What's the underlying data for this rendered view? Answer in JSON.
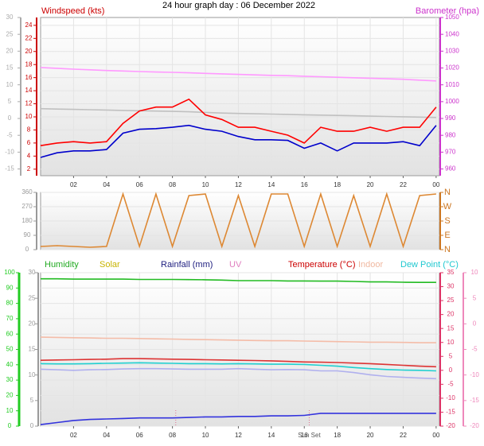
{
  "chart_data": [
    {
      "type": "line",
      "title": "24 hour graph day : 06 December 2022",
      "labels": [
        {
          "text": "Windspeed (kts)",
          "color": "#cc0000"
        },
        {
          "text": "Barometer (hpa)",
          "color": "#cc33cc"
        }
      ],
      "x": [
        0,
        1,
        2,
        3,
        4,
        5,
        6,
        7,
        8,
        9,
        10,
        11,
        12,
        13,
        14,
        15,
        16,
        17,
        18,
        19,
        20,
        21,
        22,
        23,
        24
      ],
      "xlim": [
        0,
        24.2
      ],
      "xticks": [
        {
          "value": 2,
          "label": "02"
        },
        {
          "value": 4,
          "label": "04"
        },
        {
          "value": 6,
          "label": "06"
        },
        {
          "value": 8,
          "label": "08"
        },
        10,
        12,
        14,
        16,
        18,
        20,
        22,
        {
          "value": 24,
          "label": "00"
        }
      ],
      "ylim": [
        1,
        25.2
      ],
      "yticks": [
        2,
        4,
        6,
        8,
        10,
        12,
        14,
        16,
        18,
        20,
        22,
        24
      ],
      "y2lim": [
        956,
        1050
      ],
      "y2ticks": [
        960,
        970,
        980,
        990,
        1000,
        1010,
        1020,
        1030,
        1040,
        1050
      ],
      "y3lim": [
        -17,
        30
      ],
      "y3ticks": [
        -15,
        -10,
        -5,
        0,
        5,
        10,
        15,
        20,
        25,
        30
      ],
      "axis_colors": {
        "y": "#cc0000",
        "y2": "#cc33cc",
        "y3": "#aaaaaa"
      },
      "grid": true,
      "series": [
        {
          "color": "#ff99ff",
          "axis": "y2",
          "values": [
            1020.3,
            1019.8,
            1019.3,
            1018.9,
            1018.5,
            1018.2,
            1017.9,
            1017.6,
            1017.4,
            1017.1,
            1016.8,
            1016.5,
            1016.2,
            1015.9,
            1015.6,
            1015.4,
            1015.1,
            1014.8,
            1014.5,
            1014.2,
            1013.9,
            1013.6,
            1013.3,
            1012.8,
            1012.3
          ]
        },
        {
          "color": "#c0c0c0",
          "axis": "y3",
          "values": [
            2.9,
            2.8,
            2.7,
            2.6,
            2.5,
            2.4,
            2.3,
            2.2,
            2.1,
            2.0,
            1.8,
            1.6,
            1.5,
            1.4,
            1.3,
            1.2,
            1.1,
            1.0,
            0.9,
            0.8,
            0.7,
            0.6,
            0.5,
            0.4,
            0.3
          ]
        },
        {
          "color": "#ff0000",
          "values": [
            5.6,
            6,
            6.2,
            6,
            6.2,
            9,
            10.9,
            11.5,
            11.5,
            12.7,
            10.3,
            9.6,
            8.4,
            8.4,
            7.8,
            7.2,
            6,
            8.4,
            7.8,
            7.8,
            8.4,
            7.8,
            8.4,
            8.4,
            11.5
          ]
        },
        {
          "color": "#0000cc",
          "values": [
            3.8,
            4.5,
            4.8,
            4.8,
            5,
            7.5,
            8.1,
            8.2,
            8.4,
            8.7,
            8.1,
            7.8,
            7,
            6.5,
            6.5,
            6.4,
            5.2,
            6,
            4.8,
            6,
            6,
            6,
            6.2,
            5.6,
            8.7
          ]
        }
      ]
    },
    {
      "type": "line",
      "x": [
        0,
        1,
        2,
        3,
        4,
        5,
        6,
        7,
        8,
        9,
        10,
        11,
        12,
        13,
        14,
        15,
        16,
        17,
        18,
        19,
        20,
        21,
        22,
        23,
        24
      ],
      "xlim": [
        0,
        24.2
      ],
      "ylim": [
        0,
        360
      ],
      "yticks": [
        0,
        90,
        180,
        270,
        360
      ],
      "y2lim": [
        0,
        360
      ],
      "y2ticks": [
        {
          "value": 0,
          "label": "N"
        },
        {
          "value": 90,
          "label": "E"
        },
        {
          "value": 180,
          "label": "S"
        },
        {
          "value": 270,
          "label": "W"
        },
        {
          "value": 360,
          "label": "N"
        }
      ],
      "axis_colors": {
        "y": "#999999",
        "y2": "#cc7722"
      },
      "grid": true,
      "series": [
        {
          "color": "#dd8833",
          "values": [
            20,
            25,
            20,
            15,
            20,
            350,
            20,
            350,
            20,
            340,
            350,
            20,
            340,
            20,
            350,
            350,
            20,
            350,
            20,
            340,
            20,
            350,
            20,
            340,
            350
          ]
        }
      ]
    },
    {
      "type": "line",
      "labels": [
        {
          "text": "Humidity",
          "color": "#22aa22"
        },
        {
          "text": "Solar",
          "color": "#c8b400"
        },
        {
          "text": "Rainfall (mm)",
          "color": "#202080"
        },
        {
          "text": "UV",
          "color": "#e080c0"
        },
        {
          "text": "Temperature (°C)",
          "color": "#cc0000"
        },
        {
          "text": "Indoor",
          "color": "#f0b8a0"
        },
        {
          "text": "Dew Point (°C)",
          "color": "#20c8d0"
        }
      ],
      "x": [
        0,
        1,
        2,
        3,
        4,
        5,
        6,
        7,
        8,
        9,
        10,
        11,
        12,
        13,
        14,
        15,
        16,
        17,
        18,
        19,
        20,
        21,
        22,
        23,
        24
      ],
      "xlim": [
        0,
        24.2
      ],
      "xticks": [
        {
          "value": 2,
          "label": "02"
        },
        {
          "value": 4,
          "label": "04"
        },
        {
          "value": 6,
          "label": "06"
        },
        {
          "value": 8,
          "label": "08"
        },
        10,
        12,
        14,
        16,
        18,
        20,
        22,
        {
          "value": 24,
          "label": "00"
        }
      ],
      "ylim": [
        0,
        100
      ],
      "yticks": [
        0,
        10,
        20,
        30,
        40,
        50,
        60,
        70,
        80,
        90,
        100
      ],
      "y2lim": [
        -20,
        35
      ],
      "y2ticks": [
        -20,
        -15,
        -10,
        -5,
        0,
        5,
        10,
        15,
        20,
        25,
        30,
        35
      ],
      "y3lim": [
        0,
        30
      ],
      "y3ticks": [
        0,
        5,
        10,
        15,
        20,
        25,
        30
      ],
      "y4lim": [
        -20,
        10
      ],
      "y4ticks": [
        -20,
        -15,
        -10,
        -5,
        0,
        5,
        10
      ],
      "axis_colors": {
        "y": "#22cc22",
        "y2": "#dd3366",
        "y3": "#999999",
        "y4": "#ee88bb"
      },
      "grid": true,
      "annotations": [
        {
          "x": 8.2
        },
        {
          "x": 16.3,
          "text": "Sun Set"
        }
      ],
      "series": [
        {
          "color": "#22bb22",
          "values": [
            96,
            96,
            95.8,
            95.8,
            95.8,
            95.8,
            95.6,
            95.6,
            95.6,
            95.5,
            95.4,
            95.2,
            94.8,
            94.8,
            94.8,
            94.6,
            94.6,
            94.5,
            94.5,
            94.3,
            94,
            94,
            93.8,
            93.7,
            93.7
          ]
        },
        {
          "color": "#f4bca8",
          "axis": "y2",
          "values": [
            11.9,
            11.8,
            11.7,
            11.6,
            11.5,
            11.5,
            11.4,
            11.3,
            11.2,
            11.1,
            11,
            10.9,
            10.8,
            10.7,
            10.6,
            10.6,
            10.5,
            10.4,
            10.3,
            10.2,
            10.1,
            10.1,
            10,
            9.9,
            9.9
          ]
        },
        {
          "color": "#b0b0ee",
          "axis": "y2",
          "values": [
            0.4,
            0.2,
            0,
            0.2,
            0.3,
            0.5,
            0.6,
            0.6,
            0.5,
            0.4,
            0.4,
            0.4,
            0.6,
            0.4,
            0.2,
            0.3,
            0.2,
            -0.2,
            -0.2,
            -0.8,
            -1.6,
            -2.2,
            -2.5,
            -2.8,
            -3
          ]
        },
        {
          "color": "#20d0d0",
          "axis": "y2",
          "values": [
            2.4,
            2.3,
            2.3,
            2.4,
            2.5,
            2.6,
            2.7,
            2.6,
            2.5,
            2.4,
            2.4,
            2.3,
            2.4,
            2.3,
            2.2,
            2.2,
            2.1,
            1.8,
            1.5,
            1,
            0.6,
            0.3,
            0.1,
            0,
            -0.2
          ]
        },
        {
          "color": "#dd3333",
          "axis": "y2",
          "values": [
            3.6,
            3.7,
            3.8,
            3.9,
            4,
            4.2,
            4.2,
            4.1,
            4,
            3.9,
            3.8,
            3.7,
            3.6,
            3.5,
            3.4,
            3.2,
            3,
            2.9,
            2.8,
            2.6,
            2.4,
            2.1,
            1.8,
            1.5,
            1.3
          ]
        },
        {
          "color": "#3333dd",
          "axis": "y3",
          "values": [
            0.3,
            0.7,
            1.1,
            1.3,
            1.4,
            1.5,
            1.6,
            1.6,
            1.6,
            1.7,
            1.8,
            1.8,
            1.9,
            1.9,
            2,
            2,
            2.1,
            2.5,
            2.5,
            2.5,
            2.5,
            2.5,
            2.5,
            2.5,
            2.5
          ]
        }
      ]
    }
  ]
}
